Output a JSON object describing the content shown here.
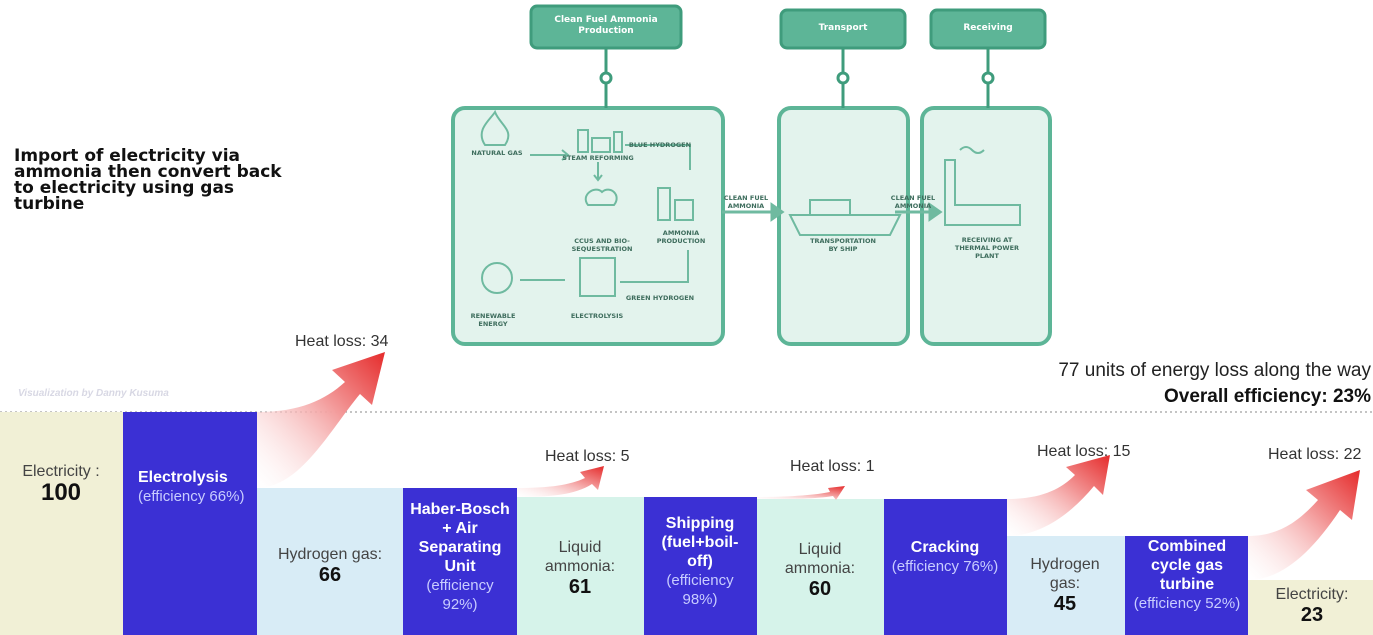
{
  "title": "Import of electricity via ammonia then convert back to electricity using gas turbine",
  "credit": "Visualization by Danny Kusuma",
  "summary": {
    "loss": "77 units of energy loss along the way",
    "efficiency": "Overall efficiency: 23%"
  },
  "process": {
    "headers": [
      "Clean Fuel Ammonia Production",
      "Transport",
      "Receiving"
    ],
    "labels": {
      "natural_gas": "NATURAL GAS",
      "steam_reforming": "STEAM REFORMING",
      "blue_hydrogen": "BLUE HYDROGEN",
      "ccus": "CCUS AND BIO-SEQUESTRATION",
      "ammonia_production": "AMMONIA PRODUCTION",
      "renewable": "RENEWABLE ENERGY",
      "electrolysis": "ELECTROLYSIS",
      "green_hydrogen": "GREEN HYDROGEN",
      "link1": "CLEAN FUEL AMMONIA",
      "ship": "TRANSPORTATION BY SHIP",
      "link2": "CLEAN FUEL AMMONIA",
      "receiving": "RECEIVING AT THERMAL POWER PLANT"
    }
  },
  "flow": {
    "states": [
      {
        "label": "Electricity :",
        "value": "100"
      },
      {
        "label": "Hydrogen gas:",
        "value": "66"
      },
      {
        "label": "Liquid ammonia:",
        "value": "61"
      },
      {
        "label": "Liquid ammonia:",
        "value": "60"
      },
      {
        "label": "Hydrogen gas:",
        "value": "45"
      },
      {
        "label": "Electricity:",
        "value": "23"
      }
    ],
    "steps": [
      {
        "name": "Electrolysis",
        "note": "(efficiency 66%)"
      },
      {
        "name": "Haber-Bosch + Air Separating Unit",
        "note": "(efficiency 92%)"
      },
      {
        "name": "Shipping (fuel+boil-off)",
        "note": "(efficiency 98%)"
      },
      {
        "name": "Cracking",
        "note": "(efficiency 76%)"
      },
      {
        "name": "Combined cycle gas turbine",
        "note": "(efficiency 52%)"
      }
    ],
    "losses": [
      "Heat loss: 34",
      "Heat loss: 5",
      "Heat loss: 1",
      "Heat loss: 15",
      "Heat loss: 22"
    ]
  }
}
